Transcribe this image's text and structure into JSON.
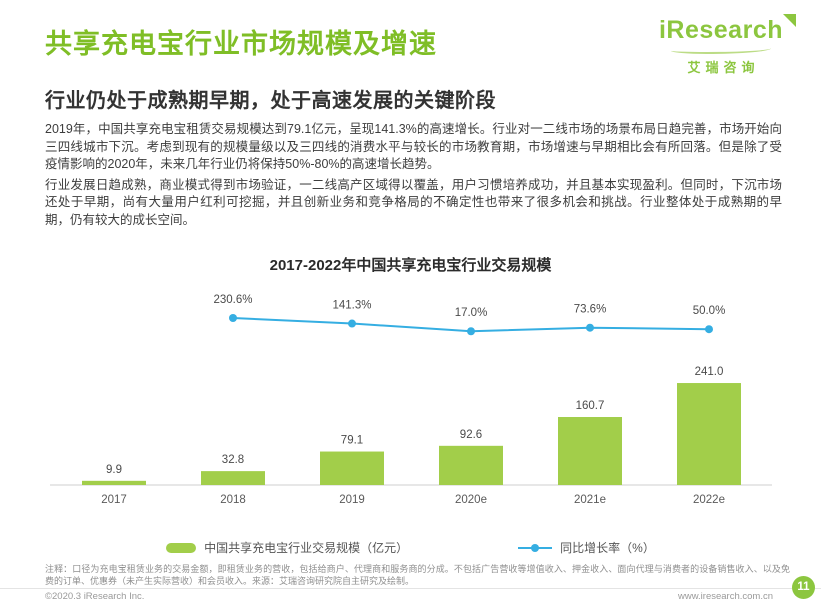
{
  "colors": {
    "brand_green": "#8CC63F",
    "title_green": "#7FBE26",
    "bar_green": "#A2CE4A",
    "line_blue": "#35AEE2",
    "text_dark": "#333333",
    "text_gray": "#8F8F8F"
  },
  "header": {
    "title": "共享充电宝行业市场规模及增速",
    "subtitle": "行业仍处于成熟期早期，处于高速发展的关键阶段"
  },
  "logo": {
    "wordmark": "iResearch",
    "chinese": "艾瑞咨询"
  },
  "paragraphs": [
    "2019年，中国共享充电宝租赁交易规模达到79.1亿元，呈现141.3%的高速增长。行业对一二线市场的场景布局日趋完善，市场开始向三四线城市下沉。考虑到现有的规模量级以及三四线的消费水平与较长的市场教育期，市场增速与早期相比会有所回落。但是除了受疫情影响的2020年，未来几年行业仍将保持50%-80%的高速增长趋势。",
    "行业发展日趋成熟，商业模式得到市场验证，一二线高产区域得以覆盖，用户习惯培养成功，并且基本实现盈利。但同时，下沉市场还处于早期，尚有大量用户红利可挖掘，并且创新业务和竞争格局的不确定性也带来了很多机会和挑战。行业整体处于成熟期的早期，仍有较大的成长空间。"
  ],
  "chart_data": {
    "type": "bar+line",
    "title": "2017-2022年中国共享充电宝行业交易规模",
    "categories": [
      "2017",
      "2018",
      "2019",
      "2020e",
      "2021e",
      "2022e"
    ],
    "series": [
      {
        "name": "中国共享充电宝行业交易规模（亿元）",
        "type": "bar",
        "values": [
          9.9,
          32.8,
          79.1,
          92.6,
          160.7,
          241.0
        ],
        "color": "#A2CE4A"
      },
      {
        "name": "同比增长率（%）",
        "type": "line",
        "categories": [
          "2018",
          "2019",
          "2020e",
          "2021e",
          "2022e"
        ],
        "values": [
          230.6,
          141.3,
          17.0,
          73.6,
          50.0
        ],
        "color": "#35AEE2"
      }
    ],
    "ylim": [
      0,
      260
    ],
    "grid": false,
    "legend_position": "bottom"
  },
  "footnote": {
    "note": "注释：口径为充电宝租赁业务的交易金额，即租赁业务的营收，包括给商户、代理商和服务商的分成。不包括广告营收等增值收入、押金收入、面向代理与消费者的设备销售收入、以及免费的订单、优惠券（未产生实际营收）和会员收入。",
    "source": "来源：艾瑞咨询研究院自主研究及绘制。"
  },
  "footer": {
    "copyright": "©2020.3 iResearch Inc.",
    "website": "www.iresearch.com.cn",
    "page_number": "11"
  }
}
